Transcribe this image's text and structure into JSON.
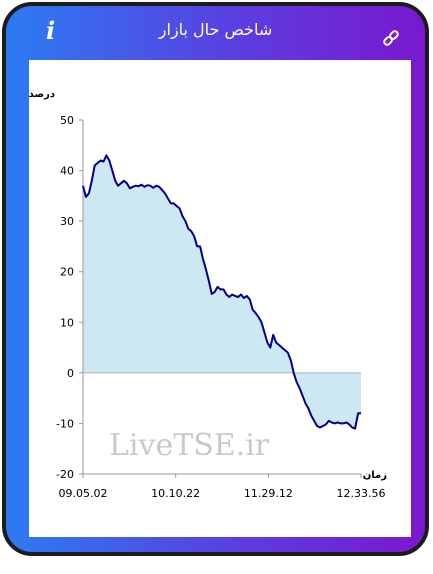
{
  "header": {
    "title": "شاخص حال بازار",
    "info_icon": "info-icon",
    "link_icon": "link-icon"
  },
  "watermark": "LiveTSE.ir",
  "colors": {
    "gradient_start": "#2c7bf2",
    "gradient_end": "#7a18cf",
    "line": "#00008b",
    "fill": "#cde8f2"
  },
  "chart_data": {
    "type": "area",
    "ylabel": "درصد",
    "xlabel": "زمان",
    "ylim": [
      -20,
      50
    ],
    "yticks": [
      50,
      40,
      30,
      20,
      10,
      0,
      -10,
      -20
    ],
    "xticks": [
      "09.05.02",
      "10.10.22",
      "11.29.12",
      "12.33.56"
    ],
    "grid": false,
    "series": [
      {
        "values": [
          37,
          34.8,
          35.5,
          38,
          41,
          41.5,
          42,
          41.8,
          43,
          42,
          40,
          38,
          37,
          37.5,
          38,
          37.5,
          36.5,
          36.8,
          37,
          36.9,
          37.2,
          36.8,
          37.1,
          37,
          36.6,
          37,
          36.8,
          36.2,
          35.5,
          34.5,
          33.5,
          33.5,
          33,
          32.5,
          31,
          30,
          28.5,
          28,
          27,
          25,
          25,
          22.5,
          20.5,
          18.2,
          15.6,
          16,
          17,
          16.5,
          16.5,
          15.5,
          15,
          15.5,
          15.2,
          15,
          15.5,
          14.8,
          15.2,
          14.5,
          12.5,
          11.8,
          11,
          10,
          8,
          6,
          5,
          7.5,
          6,
          5.5,
          5,
          4.5,
          4,
          2.5,
          0,
          -1.8,
          -3,
          -4.5,
          -6,
          -7,
          -8.5,
          -9.5,
          -10.5,
          -10.8,
          -10.5,
          -10.2,
          -9.5,
          -9.8,
          -10,
          -9.8,
          -10,
          -10,
          -9.8,
          -10.2,
          -10.8,
          -11,
          -8,
          -8
        ]
      }
    ]
  }
}
